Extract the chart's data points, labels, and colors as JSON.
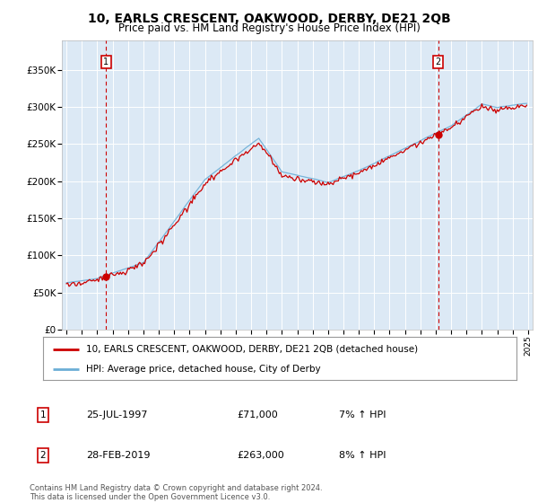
{
  "title": "10, EARLS CRESCENT, OAKWOOD, DERBY, DE21 2QB",
  "subtitle": "Price paid vs. HM Land Registry's House Price Index (HPI)",
  "ylabel_ticks": [
    "£0",
    "£50K",
    "£100K",
    "£150K",
    "£200K",
    "£250K",
    "£300K",
    "£350K"
  ],
  "ytick_values": [
    0,
    50000,
    100000,
    150000,
    200000,
    250000,
    300000,
    350000
  ],
  "ylim": [
    0,
    390000
  ],
  "xlim_start": 1994.7,
  "xlim_end": 2025.3,
  "sale1_year": 1997.57,
  "sale1_price": 71000,
  "sale1_label": "1",
  "sale1_date": "25-JUL-1997",
  "sale1_hpi": "7% ↑ HPI",
  "sale2_year": 2019.17,
  "sale2_price": 263000,
  "sale2_label": "2",
  "sale2_date": "28-FEB-2019",
  "sale2_hpi": "8% ↑ HPI",
  "hpi_line_color": "#6baed6",
  "sale_line_color": "#cc0000",
  "dot_color": "#cc0000",
  "dashed_line_color": "#cc0000",
  "legend_sale_label": "10, EARLS CRESCENT, OAKWOOD, DERBY, DE21 2QB (detached house)",
  "legend_hpi_label": "HPI: Average price, detached house, City of Derby",
  "footer": "Contains HM Land Registry data © Crown copyright and database right 2024.\nThis data is licensed under the Open Government Licence v3.0.",
  "table_rows": [
    [
      "1",
      "25-JUL-1997",
      "£71,000",
      "7% ↑ HPI"
    ],
    [
      "2",
      "28-FEB-2019",
      "£263,000",
      "8% ↑ HPI"
    ]
  ],
  "plot_bg_color": "#dce9f5",
  "grid_color": "#ffffff"
}
